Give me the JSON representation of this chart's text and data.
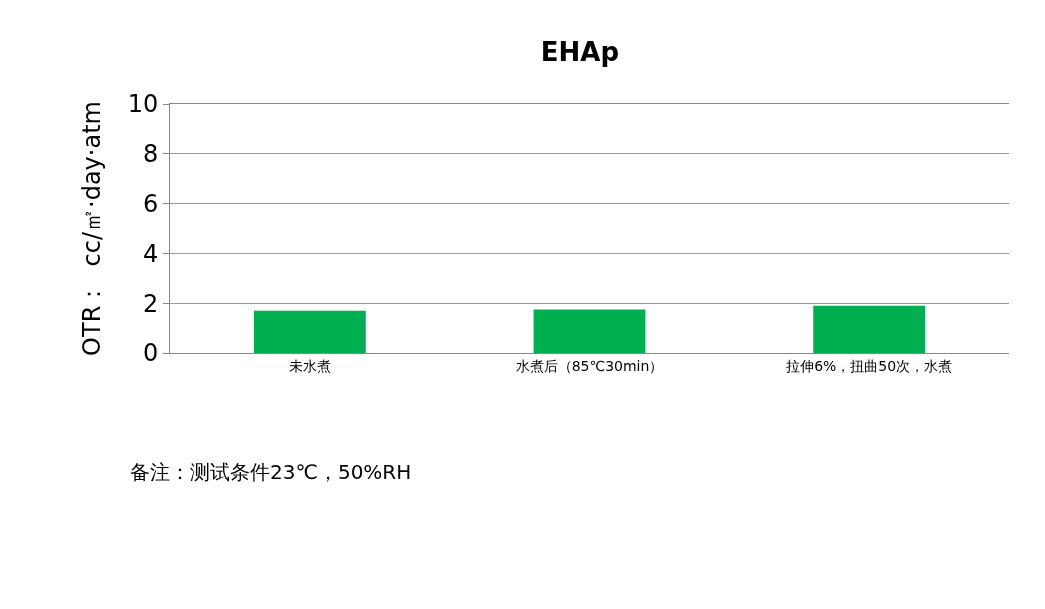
{
  "chart_data": {
    "type": "bar",
    "title": "EHAp",
    "ylabel": "OTR：  cc/㎡·day·atm",
    "categories": [
      "未水煮",
      "水煮后（85℃30min）",
      "拉伸6%，扭曲50次，水煮"
    ],
    "values": [
      1.7,
      1.75,
      1.9
    ],
    "color": "#00b050",
    "ylim": [
      0,
      10
    ],
    "yticks": [
      0,
      2,
      4,
      6,
      8,
      10
    ],
    "grid": "y",
    "annotations": [
      "备注：测试条件23℃，50%RH"
    ]
  }
}
